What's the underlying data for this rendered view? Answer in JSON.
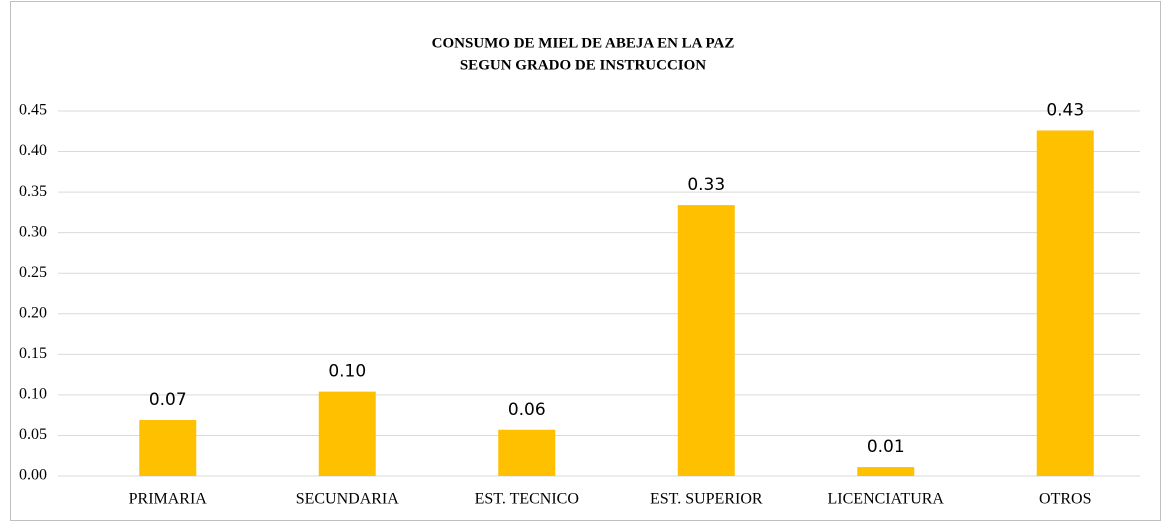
{
  "chart_data": {
    "type": "bar",
    "title": [
      "CONSUMO DE MIEL DE ABEJA  EN LA PAZ",
      "SEGUN GRADO DE INSTRUCCION"
    ],
    "categories": [
      "PRIMARIA",
      "SECUNDARIA",
      "EST. TECNICO",
      "EST. SUPERIOR",
      "LICENCIATURA",
      "OTROS"
    ],
    "values": [
      0.069,
      0.104,
      0.057,
      0.334,
      0.011,
      0.426
    ],
    "value_labels": [
      "0.07",
      "0.10",
      "0.06",
      "0.33",
      "0.01",
      "0.43"
    ],
    "color": "#ffc000",
    "ylim": [
      0,
      0.45
    ],
    "yticks": [
      {
        "value": 0,
        "label": "0.00"
      },
      0.05,
      {
        "value": 0.1,
        "label": "0.10"
      },
      0.15,
      {
        "value": 0.2,
        "label": "0.20"
      },
      0.25,
      {
        "value": 0.3,
        "label": "0.30"
      },
      0.35,
      {
        "value": 0.4,
        "label": "0.40"
      },
      0.45
    ],
    "grid": true
  }
}
